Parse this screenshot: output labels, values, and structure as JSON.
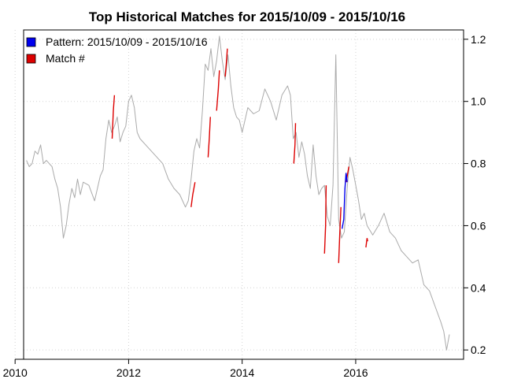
{
  "chart_data": {
    "type": "line",
    "title": "Top Historical Matches for  2015/10/09 - 2015/10/16",
    "xlabel": "",
    "ylabel": "",
    "xlim": [
      2010.15,
      2017.9
    ],
    "ylim": [
      0.17,
      1.23
    ],
    "x_ticks": [
      2010,
      2012,
      2014,
      2016
    ],
    "x_tick_labels": [
      "2010",
      "2012",
      "2014",
      "2016"
    ],
    "y_ticks": [
      0.2,
      0.4,
      0.6,
      0.8,
      1.0,
      1.2
    ],
    "y_tick_labels": [
      "0.2",
      "0.4",
      "0.6",
      "0.8",
      "1.0",
      "1.2"
    ],
    "grid": true,
    "y_axis_side": "right",
    "legend": {
      "position": "top-left",
      "entries": [
        {
          "label": "Pattern:   2015/10/09 - 2015/10/16",
          "color": "#0000ee"
        },
        {
          "label": "Match #",
          "color": "#dd0000"
        }
      ]
    },
    "colors": {
      "history": "#aaaaaa",
      "pattern": "#0000ee",
      "match": "#dd0000"
    },
    "series": [
      {
        "role": "history",
        "x": [
          2010.2,
          2010.25,
          2010.3,
          2010.35,
          2010.4,
          2010.45,
          2010.5,
          2010.55,
          2010.6,
          2010.65,
          2010.7,
          2010.75,
          2010.8,
          2010.85,
          2010.9,
          2010.95,
          2011.0,
          2011.05,
          2011.1,
          2011.15,
          2011.2,
          2011.3,
          2011.4,
          2011.5,
          2011.55,
          2011.6,
          2011.65,
          2011.7,
          2011.75,
          2011.8,
          2011.85,
          2011.9,
          2011.95,
          2012.0,
          2012.05,
          2012.1,
          2012.15,
          2012.2,
          2012.3,
          2012.4,
          2012.5,
          2012.6,
          2012.7,
          2012.8,
          2012.9,
          2013.0,
          2013.05,
          2013.1,
          2013.15,
          2013.2,
          2013.25,
          2013.3,
          2013.35,
          2013.4,
          2013.45,
          2013.5,
          2013.55,
          2013.6,
          2013.65,
          2013.7,
          2013.75,
          2013.8,
          2013.85,
          2013.9,
          2013.95,
          2014.0,
          2014.1,
          2014.2,
          2014.3,
          2014.4,
          2014.5,
          2014.6,
          2014.7,
          2014.8,
          2014.85,
          2014.9,
          2014.95,
          2015.0,
          2015.05,
          2015.1,
          2015.15,
          2015.2,
          2015.25,
          2015.3,
          2015.35,
          2015.4,
          2015.45,
          2015.5,
          2015.55,
          2015.6,
          2015.65,
          2015.7,
          2015.75,
          2015.8,
          2015.85,
          2015.9,
          2015.95,
          2016.0,
          2016.05,
          2016.1,
          2016.15,
          2016.2,
          2016.3,
          2016.4,
          2016.5,
          2016.6,
          2016.7,
          2016.8,
          2016.9,
          2017.0,
          2017.1,
          2017.2,
          2017.3,
          2017.4,
          2017.5,
          2017.55,
          2017.6,
          2017.65
        ],
        "y": [
          0.81,
          0.79,
          0.8,
          0.84,
          0.83,
          0.86,
          0.8,
          0.81,
          0.8,
          0.79,
          0.75,
          0.72,
          0.66,
          0.56,
          0.6,
          0.67,
          0.72,
          0.69,
          0.75,
          0.7,
          0.74,
          0.73,
          0.68,
          0.76,
          0.78,
          0.88,
          0.94,
          0.9,
          0.92,
          0.95,
          0.87,
          0.9,
          0.92,
          1.0,
          1.02,
          0.98,
          0.9,
          0.88,
          0.86,
          0.84,
          0.82,
          0.8,
          0.75,
          0.72,
          0.7,
          0.66,
          0.68,
          0.75,
          0.84,
          0.88,
          0.85,
          0.97,
          1.12,
          1.1,
          1.17,
          1.08,
          1.13,
          1.21,
          1.13,
          1.07,
          1.15,
          1.05,
          0.98,
          0.95,
          0.94,
          0.9,
          0.98,
          0.96,
          0.97,
          1.04,
          1.0,
          0.94,
          1.02,
          1.05,
          1.02,
          0.88,
          0.9,
          0.82,
          0.87,
          0.83,
          0.76,
          0.72,
          0.86,
          0.76,
          0.7,
          0.72,
          0.73,
          0.63,
          0.6,
          0.73,
          1.15,
          0.62,
          0.56,
          0.58,
          0.72,
          0.82,
          0.78,
          0.73,
          0.68,
          0.62,
          0.64,
          0.6,
          0.57,
          0.6,
          0.64,
          0.58,
          0.56,
          0.52,
          0.5,
          0.48,
          0.49,
          0.41,
          0.39,
          0.34,
          0.29,
          0.26,
          0.2,
          0.25
        ]
      },
      {
        "role": "pattern",
        "x": [
          2015.76,
          2015.79,
          2015.81,
          2015.83,
          2015.85
        ],
        "y": [
          0.59,
          0.62,
          0.72,
          0.77,
          0.74
        ]
      },
      {
        "role": "match",
        "segments": [
          {
            "x": [
              2011.71,
              2011.73,
              2011.75
            ],
            "y": [
              0.88,
              0.97,
              1.02
            ]
          },
          {
            "x": [
              2013.1,
              2013.13,
              2013.17
            ],
            "y": [
              0.66,
              0.7,
              0.74
            ]
          },
          {
            "x": [
              2013.4,
              2013.42,
              2013.44
            ],
            "y": [
              0.82,
              0.88,
              0.95
            ]
          },
          {
            "x": [
              2013.55,
              2013.58,
              2013.6
            ],
            "y": [
              0.97,
              1.04,
              1.1
            ]
          },
          {
            "x": [
              2013.7,
              2013.72,
              2013.74
            ],
            "y": [
              1.08,
              1.12,
              1.17
            ]
          },
          {
            "x": [
              2014.91,
              2014.93,
              2014.94
            ],
            "y": [
              0.8,
              0.86,
              0.93
            ]
          },
          {
            "x": [
              2015.45,
              2015.47,
              2015.48
            ],
            "y": [
              0.51,
              0.6,
              0.73
            ]
          },
          {
            "x": [
              2015.7,
              2015.72,
              2015.74
            ],
            "y": [
              0.48,
              0.58,
              0.66
            ]
          },
          {
            "x": [
              2015.83,
              2015.86,
              2015.88
            ],
            "y": [
              0.74,
              0.77,
              0.79
            ]
          },
          {
            "x": [
              2016.18,
              2016.2,
              2016.21
            ],
            "y": [
              0.53,
              0.56,
              0.55
            ]
          }
        ]
      }
    ]
  }
}
